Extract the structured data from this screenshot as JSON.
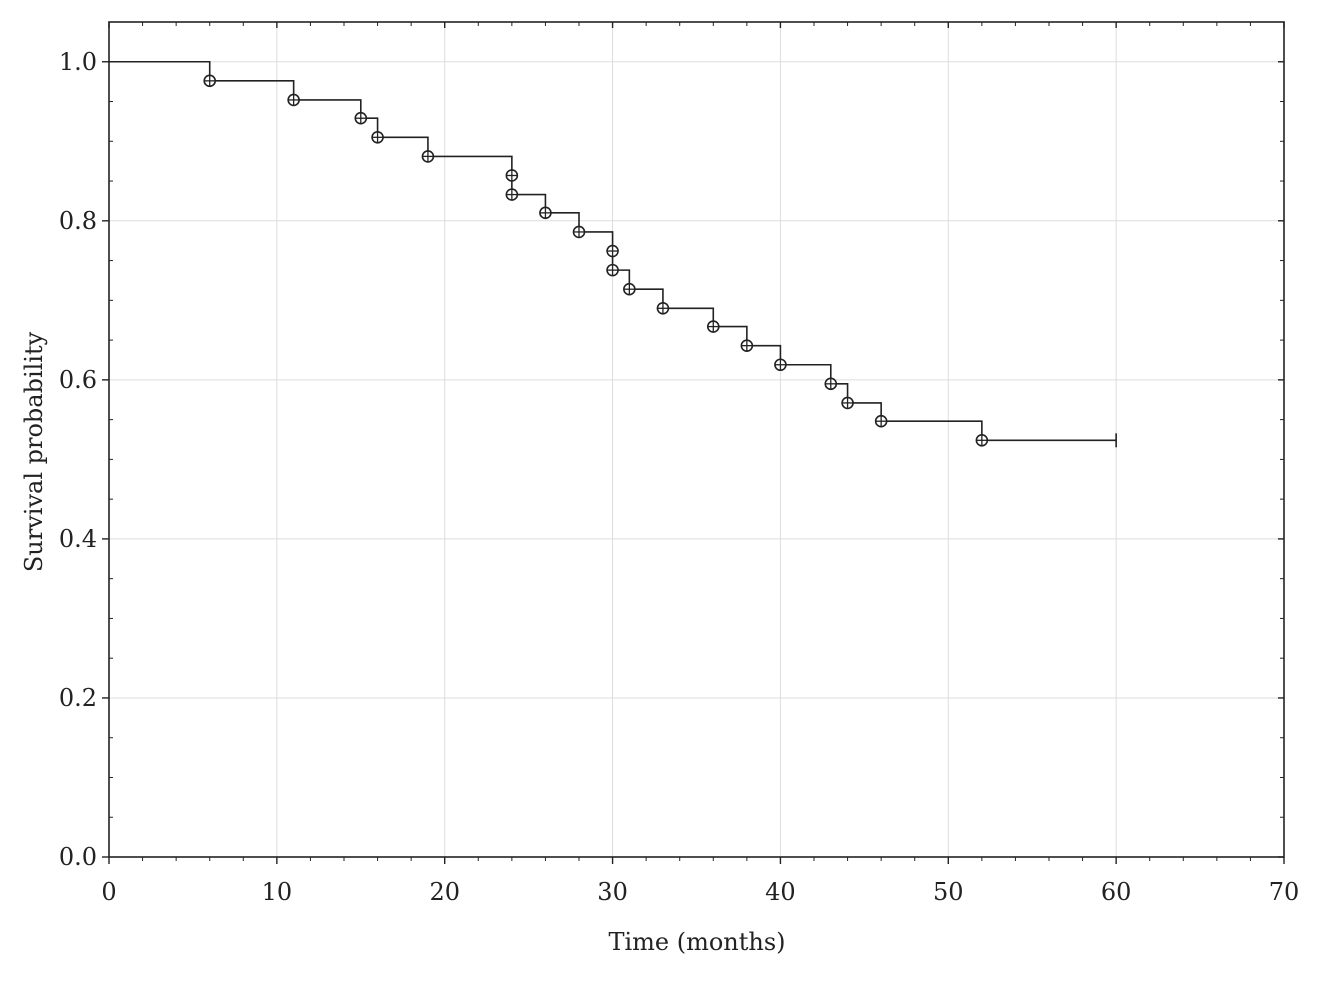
{
  "chart_data": {
    "type": "line",
    "subtype": "kaplan-meier step survival curve",
    "title": "",
    "xlabel": "Time (months)",
    "ylabel": "Survival probability",
    "xlim": [
      0,
      70
    ],
    "ylim": [
      0,
      1.05
    ],
    "x_ticks": [
      0,
      10,
      20,
      30,
      40,
      50,
      60,
      70
    ],
    "y_ticks": [
      0.0,
      0.2,
      0.4,
      0.6,
      0.8,
      1.0
    ],
    "x_tick_labels": [
      "0",
      "10",
      "20",
      "30",
      "40",
      "50",
      "60",
      "70"
    ],
    "y_tick_labels": [
      "0.0",
      "0.2",
      "0.4",
      "0.6",
      "0.8",
      "1.0"
    ],
    "grid": true,
    "legend": "none",
    "series": [
      {
        "steps": [
          {
            "x": 0,
            "y": 1.0
          },
          {
            "x": 6,
            "y": 0.976
          },
          {
            "x": 11,
            "y": 0.952
          },
          {
            "x": 15,
            "y": 0.929
          },
          {
            "x": 16,
            "y": 0.905
          },
          {
            "x": 19,
            "y": 0.881
          },
          {
            "x": 24,
            "y": 0.833
          },
          {
            "x": 26,
            "y": 0.81
          },
          {
            "x": 28,
            "y": 0.786
          },
          {
            "x": 30,
            "y": 0.738
          },
          {
            "x": 31,
            "y": 0.714
          },
          {
            "x": 33,
            "y": 0.69
          },
          {
            "x": 36,
            "y": 0.667
          },
          {
            "x": 38,
            "y": 0.643
          },
          {
            "x": 40,
            "y": 0.619
          },
          {
            "x": 43,
            "y": 0.595
          },
          {
            "x": 44,
            "y": 0.571
          },
          {
            "x": 46,
            "y": 0.548
          },
          {
            "x": 52,
            "y": 0.524
          }
        ],
        "end_x": 60,
        "event_markers": [
          {
            "x": 6,
            "y": 0.976
          },
          {
            "x": 11,
            "y": 0.952
          },
          {
            "x": 15,
            "y": 0.929
          },
          {
            "x": 16,
            "y": 0.905
          },
          {
            "x": 19,
            "y": 0.881
          },
          {
            "x": 24,
            "y": 0.857
          },
          {
            "x": 24,
            "y": 0.833
          },
          {
            "x": 26,
            "y": 0.81
          },
          {
            "x": 28,
            "y": 0.786
          },
          {
            "x": 30,
            "y": 0.762
          },
          {
            "x": 30,
            "y": 0.738
          },
          {
            "x": 31,
            "y": 0.714
          },
          {
            "x": 33,
            "y": 0.69
          },
          {
            "x": 36,
            "y": 0.667
          },
          {
            "x": 38,
            "y": 0.643
          },
          {
            "x": 40,
            "y": 0.619
          },
          {
            "x": 43,
            "y": 0.595
          },
          {
            "x": 44,
            "y": 0.571
          },
          {
            "x": 46,
            "y": 0.548
          },
          {
            "x": 52,
            "y": 0.524
          }
        ],
        "censored_markers": [
          {
            "x": 60,
            "y": 0.524
          }
        ]
      }
    ],
    "colors": {
      "line": "#222222",
      "grid": "#dddddd",
      "axis": "#222222"
    }
  }
}
